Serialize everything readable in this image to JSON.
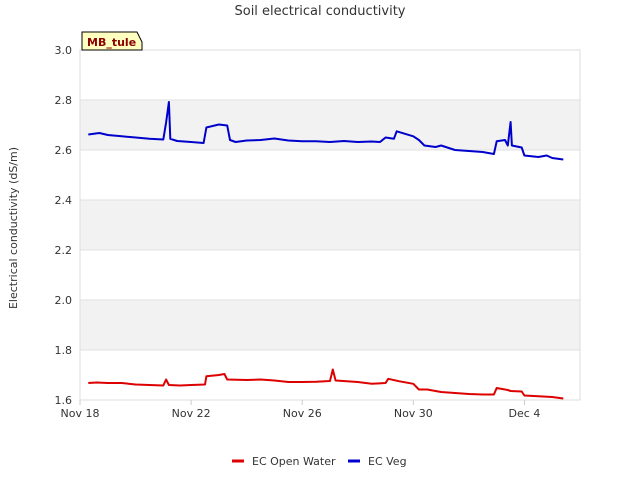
{
  "chart_data": {
    "type": "line",
    "title": "Soil electrical conductivity",
    "ylabel": "Electrical conductivity (dS/m)",
    "xlabel": "",
    "badge": "MB_tule",
    "ylim": [
      1.6,
      3.0
    ],
    "xlim": [
      0,
      18
    ],
    "y_ticks": [
      "1.6",
      "1.8",
      "2.0",
      "2.2",
      "2.4",
      "2.6",
      "2.8",
      "3.0"
    ],
    "x_ticks": [
      {
        "label": "Nov 18",
        "x": 0
      },
      {
        "label": "Nov 22",
        "x": 4
      },
      {
        "label": "Nov 26",
        "x": 8
      },
      {
        "label": "Nov 30",
        "x": 12
      },
      {
        "label": "Dec 4",
        "x": 16
      }
    ],
    "grid_bands": true,
    "legend_position": "bottom-center",
    "series": [
      {
        "name": "EC Open Water",
        "color": "#dd0000",
        "points": [
          [
            0.3,
            1.668
          ],
          [
            0.6,
            1.67
          ],
          [
            1.0,
            1.668
          ],
          [
            1.5,
            1.668
          ],
          [
            2.0,
            1.662
          ],
          [
            2.5,
            1.66
          ],
          [
            3.0,
            1.658
          ],
          [
            3.1,
            1.682
          ],
          [
            3.2,
            1.66
          ],
          [
            3.6,
            1.658
          ],
          [
            4.0,
            1.66
          ],
          [
            4.5,
            1.662
          ],
          [
            4.55,
            1.695
          ],
          [
            5.0,
            1.7
          ],
          [
            5.2,
            1.704
          ],
          [
            5.3,
            1.682
          ],
          [
            6.0,
            1.68
          ],
          [
            6.5,
            1.682
          ],
          [
            7.0,
            1.678
          ],
          [
            7.5,
            1.672
          ],
          [
            8.0,
            1.672
          ],
          [
            8.5,
            1.673
          ],
          [
            9.0,
            1.676
          ],
          [
            9.1,
            1.722
          ],
          [
            9.2,
            1.678
          ],
          [
            10.0,
            1.672
          ],
          [
            10.5,
            1.665
          ],
          [
            11.0,
            1.668
          ],
          [
            11.1,
            1.685
          ],
          [
            11.5,
            1.675
          ],
          [
            12.0,
            1.665
          ],
          [
            12.2,
            1.642
          ],
          [
            12.5,
            1.642
          ],
          [
            13.0,
            1.632
          ],
          [
            13.5,
            1.628
          ],
          [
            14.0,
            1.624
          ],
          [
            14.5,
            1.622
          ],
          [
            14.9,
            1.622
          ],
          [
            15.0,
            1.648
          ],
          [
            15.4,
            1.64
          ],
          [
            15.5,
            1.636
          ],
          [
            15.9,
            1.634
          ],
          [
            16.0,
            1.618
          ],
          [
            16.5,
            1.615
          ],
          [
            17.0,
            1.612
          ],
          [
            17.4,
            1.606
          ]
        ]
      },
      {
        "name": "EC Veg",
        "color": "#0000cc",
        "points": [
          [
            0.3,
            2.662
          ],
          [
            0.7,
            2.668
          ],
          [
            1.0,
            2.66
          ],
          [
            1.5,
            2.655
          ],
          [
            2.0,
            2.65
          ],
          [
            2.5,
            2.645
          ],
          [
            3.0,
            2.642
          ],
          [
            3.1,
            2.71
          ],
          [
            3.2,
            2.792
          ],
          [
            3.25,
            2.645
          ],
          [
            3.5,
            2.636
          ],
          [
            4.0,
            2.632
          ],
          [
            4.45,
            2.628
          ],
          [
            4.55,
            2.69
          ],
          [
            5.0,
            2.702
          ],
          [
            5.3,
            2.698
          ],
          [
            5.4,
            2.64
          ],
          [
            5.6,
            2.632
          ],
          [
            6.0,
            2.638
          ],
          [
            6.5,
            2.64
          ],
          [
            7.0,
            2.646
          ],
          [
            7.5,
            2.638
          ],
          [
            8.0,
            2.635
          ],
          [
            8.5,
            2.635
          ],
          [
            9.0,
            2.632
          ],
          [
            9.5,
            2.636
          ],
          [
            10.0,
            2.632
          ],
          [
            10.5,
            2.634
          ],
          [
            10.8,
            2.632
          ],
          [
            11.0,
            2.65
          ],
          [
            11.3,
            2.645
          ],
          [
            11.4,
            2.675
          ],
          [
            11.7,
            2.665
          ],
          [
            12.0,
            2.655
          ],
          [
            12.2,
            2.64
          ],
          [
            12.4,
            2.618
          ],
          [
            12.8,
            2.612
          ],
          [
            13.0,
            2.618
          ],
          [
            13.5,
            2.6
          ],
          [
            14.0,
            2.596
          ],
          [
            14.5,
            2.592
          ],
          [
            14.9,
            2.584
          ],
          [
            15.0,
            2.635
          ],
          [
            15.3,
            2.64
          ],
          [
            15.4,
            2.618
          ],
          [
            15.5,
            2.712
          ],
          [
            15.55,
            2.618
          ],
          [
            15.9,
            2.61
          ],
          [
            16.0,
            2.578
          ],
          [
            16.5,
            2.572
          ],
          [
            16.8,
            2.578
          ],
          [
            17.0,
            2.568
          ],
          [
            17.4,
            2.562
          ]
        ]
      }
    ]
  }
}
